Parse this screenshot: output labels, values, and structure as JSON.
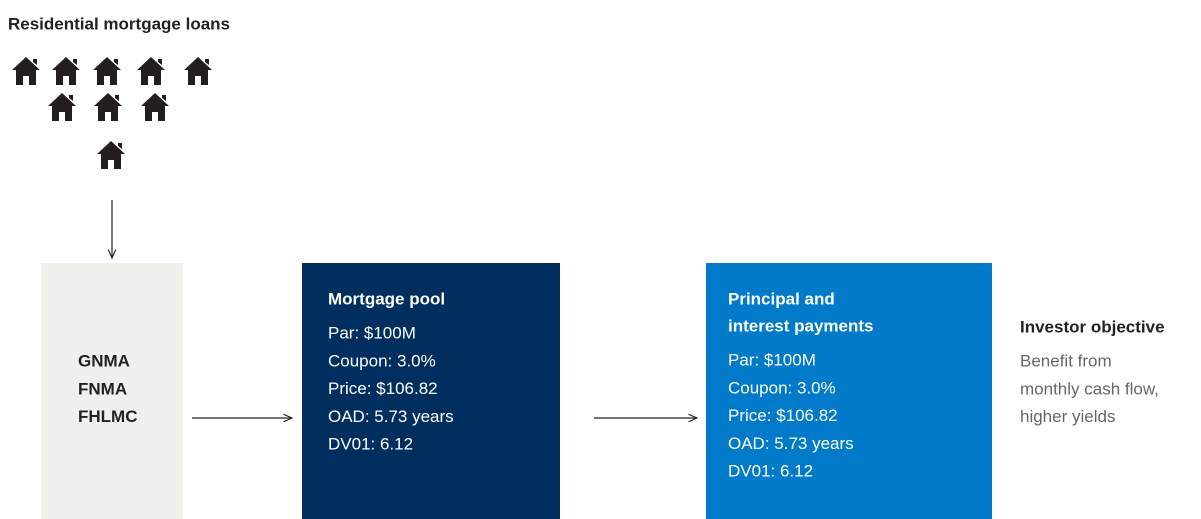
{
  "title": "Residential mortgage loans",
  "nodes": [
    {
      "lines": [
        "GNMA",
        "FNMA",
        "FHLMC"
      ]
    },
    {
      "title": [
        "Mortgage pool"
      ],
      "lines": [
        "Par: $100M",
        "Coupon: 3.0%",
        "Price: $106.82",
        "OAD: 5.73 years",
        "DV01: 6.12"
      ]
    },
    {
      "title": [
        "Principal and",
        "interest payments"
      ],
      "lines": [
        "Par: $100M",
        "Coupon: 3.0%",
        "Price: $106.82",
        "OAD: 5.73 years",
        "DV01: 6.12"
      ]
    },
    {
      "title": [
        "Investor objective"
      ],
      "lines": [
        "Benefit from",
        "monthly cash flow,",
        "higher yields"
      ]
    }
  ]
}
